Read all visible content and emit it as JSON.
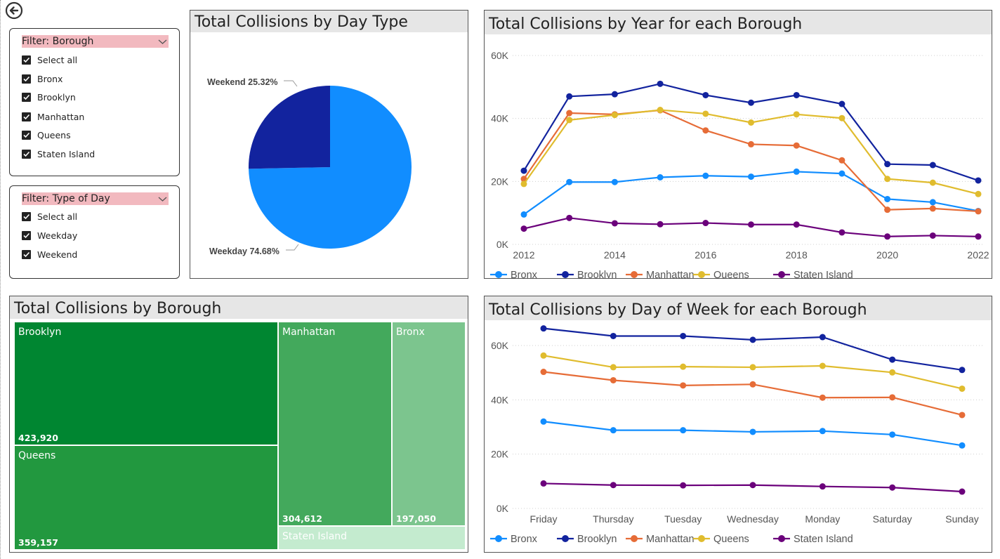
{
  "filters": [
    {
      "title": "Filter: Borough",
      "items": [
        "Select all",
        "Bronx",
        "Brooklyn",
        "Manhattan",
        "Queens",
        "Staten Island"
      ]
    },
    {
      "title": "Filter: Type of Day",
      "items": [
        "Select all",
        "Weekday",
        "Weekend"
      ]
    }
  ],
  "colors": {
    "Bronx": "#118dff",
    "Brooklyn": "#12239e",
    "Manhattan": "#e66c37",
    "Queens": "#e0bc2e",
    "Staten Island": "#6b007b",
    "treemap": [
      "#008631",
      "#22983f",
      "#43a95c",
      "#7cc58e",
      "#c4ebcf"
    ],
    "filter_header": "#f2b9bf"
  },
  "pie_panel": {
    "title": "Total Collisions by Day Type",
    "chart_data": {
      "type": "pie",
      "slices": [
        {
          "label": "Weekday",
          "value": 74.68,
          "text": "Weekday 74.68%",
          "color": "#118dff"
        },
        {
          "label": "Weekend",
          "value": 25.32,
          "text": "Weekend 25.32%",
          "color": "#12239e"
        }
      ]
    }
  },
  "year_panel": {
    "title": "Total Collisions by Year for each Borough",
    "chart_data": {
      "type": "line",
      "x": [
        2012,
        2013,
        2014,
        2015,
        2016,
        2017,
        2018,
        2019,
        2020,
        2021,
        2022
      ],
      "x_ticks": [
        "2012",
        "2014",
        "2016",
        "2018",
        "2020",
        "2022"
      ],
      "y_ticks": [
        "0K",
        "20K",
        "40K",
        "60K"
      ],
      "ylim": [
        0,
        60000
      ],
      "series": [
        {
          "name": "Bronx",
          "values": [
            9500,
            19800,
            19800,
            21300,
            21800,
            21500,
            23100,
            22500,
            14400,
            13400,
            10600
          ]
        },
        {
          "name": "Brooklyn",
          "values": [
            23400,
            47000,
            47700,
            51000,
            47400,
            45000,
            47400,
            44600,
            25500,
            25200,
            20300
          ]
        },
        {
          "name": "Manhattan",
          "values": [
            20800,
            41700,
            41300,
            42600,
            36200,
            31800,
            31400,
            26700,
            11000,
            11400,
            10500
          ]
        },
        {
          "name": "Queens",
          "values": [
            19200,
            39500,
            41100,
            42700,
            41500,
            38700,
            41300,
            40100,
            20800,
            19600,
            16000
          ]
        },
        {
          "name": "Staten Island",
          "values": [
            5000,
            8400,
            6700,
            6400,
            6800,
            6300,
            6300,
            3800,
            2500,
            2800,
            2500
          ]
        }
      ]
    }
  },
  "treemap_panel": {
    "title": "Total Collisions by Borough",
    "chart_data": {
      "type": "treemap",
      "items": [
        {
          "label": "Brooklyn",
          "value": 423920,
          "value_text": "423,920"
        },
        {
          "label": "Queens",
          "value": 359157,
          "value_text": "359,157"
        },
        {
          "label": "Manhattan",
          "value": 304612,
          "value_text": "304,612"
        },
        {
          "label": "Bronx",
          "value": 197050,
          "value_text": "197,050"
        },
        {
          "label": "Staten Island",
          "value": null,
          "value_text": ""
        }
      ]
    }
  },
  "week_panel": {
    "title": "Total Collisions by Day of Week for each Borough",
    "chart_data": {
      "type": "line",
      "categories": [
        "Friday",
        "Thursday",
        "Tuesday",
        "Wednesday",
        "Monday",
        "Saturday",
        "Sunday"
      ],
      "y_ticks": [
        "0K",
        "20K",
        "40K",
        "60K"
      ],
      "ylim": [
        0,
        60000
      ],
      "series": [
        {
          "name": "Bronx",
          "values": [
            32000,
            28800,
            28800,
            28200,
            28500,
            27200,
            23200
          ]
        },
        {
          "name": "Brooklyn",
          "values": [
            66300,
            63500,
            63500,
            62100,
            63100,
            54800,
            51000
          ]
        },
        {
          "name": "Manhattan",
          "values": [
            50300,
            47200,
            45300,
            45700,
            40800,
            40900,
            34400
          ]
        },
        {
          "name": "Queens",
          "values": [
            56300,
            52000,
            52200,
            52000,
            52500,
            50100,
            44100
          ]
        },
        {
          "name": "Staten Island",
          "values": [
            9200,
            8600,
            8500,
            8600,
            8100,
            7700,
            6200
          ]
        }
      ]
    }
  }
}
